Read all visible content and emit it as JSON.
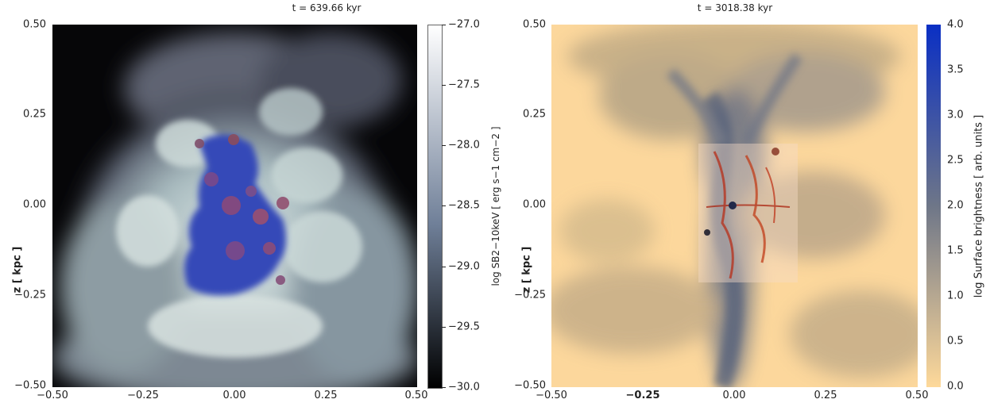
{
  "left_panel": {
    "title": "t = 639.66 kyr",
    "y_ticks": [
      "0.50",
      "0.25",
      "0.00",
      "−0.25",
      "−0.50"
    ],
    "x_ticks": [
      "−0.50",
      "−0.25",
      "0.00",
      "0.25",
      "0.50"
    ],
    "ylabel": "z [ kpc ]",
    "colorbar": {
      "label": "log SB2−10keV [ erg s−1 cm−2 ]",
      "ticks": [
        "−27.0",
        "−27.5",
        "−28.0",
        "−28.5",
        "−29.0",
        "−29.5",
        "−30.0"
      ],
      "color_top": "#ffffff",
      "color_mid": "#6f7f98",
      "color_bottom": "#000000"
    }
  },
  "right_panel": {
    "title": "t = 3018.38 kyr",
    "y_ticks": [
      "0.50",
      "0.25",
      "0.00",
      "−0.25",
      "−0.50"
    ],
    "x_ticks": [
      "−0.50",
      "−0.25",
      "0.00",
      "0.25",
      "0.50"
    ],
    "ylabel": "z [ kpc ]",
    "colorbar": {
      "label": "log Surface brightness [ arb. units ]",
      "ticks": [
        "4.0",
        "3.5",
        "3.0",
        "2.5",
        "2.0",
        "1.5",
        "1.0",
        "0.5",
        "0.0"
      ],
      "color_top": "#0a2fc4",
      "color_mid": "#6e7688",
      "color_bottom": "#fed99a"
    }
  }
}
